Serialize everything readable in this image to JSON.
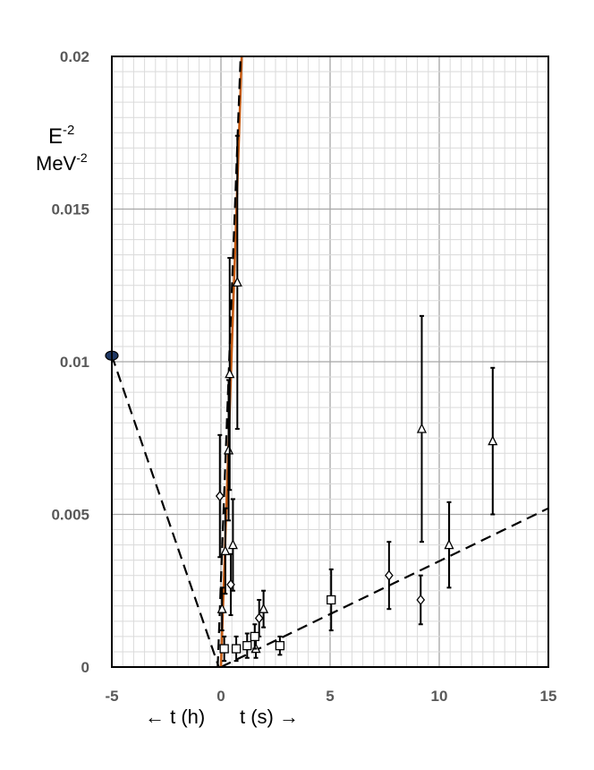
{
  "chart_data": {
    "type": "scatter",
    "title": "",
    "ylabel": "E-2 MeV-2",
    "ylabel_main": "E",
    "ylabel_main_sup": "-2",
    "ylabel_unit": "MeV",
    "ylabel_unit_sup": "-2",
    "xlabel_left": "← t (h)",
    "xlabel_right": "t (s) →",
    "xlim": [
      -5,
      15
    ],
    "ylim": [
      0,
      0.02
    ],
    "grid": true,
    "x_ticks": [
      {
        "value": -5,
        "label": "-5"
      },
      {
        "value": 0,
        "label": "0"
      },
      {
        "value": 5,
        "label": "5"
      },
      {
        "value": 10,
        "label": "10"
      },
      {
        "value": 15,
        "label": "15"
      }
    ],
    "y_ticks": [
      {
        "value": 0,
        "label": "0"
      },
      {
        "value": 0.005,
        "label": "0.005"
      },
      {
        "value": 0.01,
        "label": "0.01"
      },
      {
        "value": 0.015,
        "label": "0.015"
      },
      {
        "value": 0.02,
        "label": "0.02"
      }
    ],
    "series": [
      {
        "marker": "triangle",
        "points": [
          {
            "x": 0.05,
            "y": 0.0019,
            "err": 0.0007
          },
          {
            "x": 0.2,
            "y": 0.0038,
            "err": 0.0014
          },
          {
            "x": 0.35,
            "y": 0.0071,
            "err": 0.0023
          },
          {
            "x": 0.4,
            "y": 0.0096,
            "err": 0.0038
          },
          {
            "x": 0.55,
            "y": 0.004,
            "err": 0.0015
          },
          {
            "x": 0.75,
            "y": 0.0126,
            "err": 0.0048
          },
          {
            "x": 1.6,
            "y": 0.0006,
            "err": 0.0003
          },
          {
            "x": 1.95,
            "y": 0.0019,
            "err": 0.0006
          },
          {
            "x": 9.2,
            "y": 0.0078,
            "err": 0.0037
          },
          {
            "x": 10.45,
            "y": 0.004,
            "err": 0.0014
          },
          {
            "x": 12.45,
            "y": 0.0074,
            "err": 0.0024
          }
        ]
      },
      {
        "marker": "diamond",
        "points": [
          {
            "x": -0.05,
            "y": 0.0056,
            "err": 0.002
          },
          {
            "x": 0.45,
            "y": 0.0027,
            "err": 0.001
          },
          {
            "x": 1.75,
            "y": 0.0016,
            "err": 0.0006
          },
          {
            "x": 7.7,
            "y": 0.003,
            "err": 0.0011
          },
          {
            "x": 9.15,
            "y": 0.0022,
            "err": 0.0008
          }
        ]
      },
      {
        "marker": "square",
        "points": [
          {
            "x": 0.15,
            "y": 0.0006,
            "err": 0.0004
          },
          {
            "x": 0.7,
            "y": 0.0006,
            "err": 0.0004
          },
          {
            "x": 1.2,
            "y": 0.0007,
            "err": 0.0004
          },
          {
            "x": 1.55,
            "y": 0.001,
            "err": 0.0004
          },
          {
            "x": 2.7,
            "y": 0.0007,
            "err": 0.0003
          },
          {
            "x": 5.05,
            "y": 0.0022,
            "err": 0.001
          }
        ]
      },
      {
        "marker": "ellipse",
        "color": "#1f3864",
        "points": [
          {
            "x": -5,
            "y": 0.0102
          }
        ]
      }
    ],
    "lines": [
      {
        "style": "dashed",
        "color": "#000000",
        "points": [
          [
            -5,
            0.0102
          ],
          [
            -0.1,
            0.0
          ]
        ]
      },
      {
        "style": "dashed",
        "color": "#000000",
        "points": [
          [
            0,
            0.0
          ],
          [
            15,
            0.0052
          ]
        ]
      },
      {
        "style": "solid",
        "color": "#c55a11",
        "points": [
          [
            0,
            0.0
          ],
          [
            0.95,
            0.02
          ]
        ]
      },
      {
        "style": "dashed",
        "color": "#000000",
        "points": [
          [
            -0.15,
            0.0
          ],
          [
            0.9,
            0.02
          ]
        ]
      }
    ]
  }
}
